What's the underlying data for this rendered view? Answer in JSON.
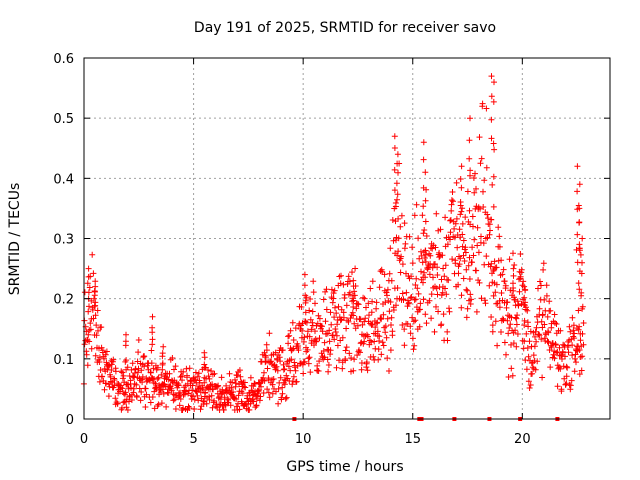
{
  "chart_data": {
    "type": "scatter",
    "title": "Day 191 of 2025, SRMTID for receiver savo",
    "xlabel": "GPS time / hours",
    "ylabel": "SRMTID / TECUs",
    "xlim": [
      0,
      24
    ],
    "ylim": [
      0,
      0.6
    ],
    "xticks": [
      0,
      5,
      10,
      15,
      20
    ],
    "xtick_labels": [
      "0",
      "5",
      "10",
      "15",
      "20"
    ],
    "yticks": [
      0,
      0.1,
      0.2,
      0.3,
      0.4,
      0.5,
      0.6
    ],
    "ytick_labels": [
      "0",
      "0.1",
      "0.2",
      "0.3",
      "0.4",
      "0.5",
      "0.6"
    ],
    "grid": true,
    "marker": "+",
    "series": [
      {
        "name": "SRMTID",
        "color": "#ff0000",
        "profile": {
          "x": [
            0,
            0.2,
            0.4,
            0.7,
            1.0,
            1.5,
            2.0,
            2.5,
            3.0,
            3.5,
            4.0,
            4.5,
            5.0,
            5.5,
            6.0,
            6.5,
            7.0,
            7.5,
            8.0,
            8.5,
            9.0,
            9.5,
            10.0,
            10.5,
            11.0,
            11.5,
            12.0,
            12.5,
            13.0,
            13.5,
            14.0,
            14.3,
            14.6,
            15.0,
            15.3,
            15.6,
            16.0,
            16.5,
            17.0,
            17.5,
            18.0,
            18.3,
            18.6,
            19.0,
            19.5,
            20.0,
            20.3,
            20.6,
            21.0,
            21.3,
            21.6,
            22.0,
            22.3,
            22.6,
            22.8
          ],
          "y": [
            0.12,
            0.15,
            0.19,
            0.11,
            0.08,
            0.06,
            0.05,
            0.08,
            0.06,
            0.05,
            0.06,
            0.045,
            0.05,
            0.05,
            0.045,
            0.04,
            0.05,
            0.035,
            0.05,
            0.09,
            0.07,
            0.1,
            0.13,
            0.15,
            0.14,
            0.17,
            0.18,
            0.16,
            0.15,
            0.16,
            0.2,
            0.32,
            0.22,
            0.2,
            0.26,
            0.21,
            0.24,
            0.22,
            0.28,
            0.25,
            0.33,
            0.36,
            0.26,
            0.2,
            0.17,
            0.2,
            0.09,
            0.12,
            0.18,
            0.14,
            0.11,
            0.09,
            0.12,
            0.13,
            0.14
          ]
        },
        "spikes": [
          {
            "x": 0.2,
            "y": 0.25
          },
          {
            "x": 0.5,
            "y": 0.22
          },
          {
            "x": 1.9,
            "y": 0.14
          },
          {
            "x": 3.1,
            "y": 0.17
          },
          {
            "x": 3.6,
            "y": 0.12
          },
          {
            "x": 5.5,
            "y": 0.11
          },
          {
            "x": 10.1,
            "y": 0.24
          },
          {
            "x": 12.3,
            "y": 0.23
          },
          {
            "x": 14.2,
            "y": 0.47
          },
          {
            "x": 14.3,
            "y": 0.44
          },
          {
            "x": 15.5,
            "y": 0.46
          },
          {
            "x": 15.6,
            "y": 0.41
          },
          {
            "x": 17.2,
            "y": 0.42
          },
          {
            "x": 17.6,
            "y": 0.5
          },
          {
            "x": 18.6,
            "y": 0.57
          },
          {
            "x": 18.7,
            "y": 0.56
          },
          {
            "x": 19.6,
            "y": 0.25
          },
          {
            "x": 20.1,
            "y": 0.22
          },
          {
            "x": 22.5,
            "y": 0.42
          },
          {
            "x": 22.6,
            "y": 0.39
          },
          {
            "x": 22.6,
            "y": 0.35
          },
          {
            "x": 22.7,
            "y": 0.3
          }
        ],
        "zero_flags": [
          9.6,
          15.3,
          15.4,
          16.9,
          18.5,
          19.9,
          21.6
        ]
      }
    ]
  }
}
